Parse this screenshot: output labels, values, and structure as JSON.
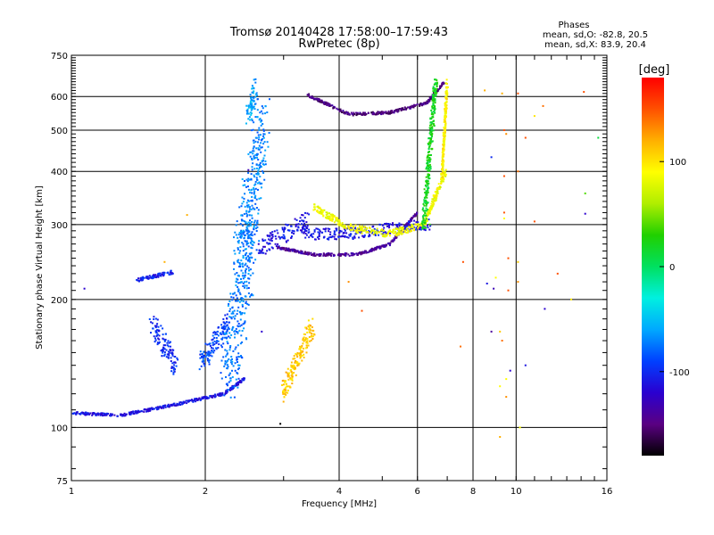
{
  "chart_data": {
    "type": "scatter",
    "title": "Tromsø 20140428 17:58:00–17:59:43",
    "subtitle": "RwPretec (8p)",
    "xlabel": "Frequency [MHz]",
    "ylabel": "Stationary phase Virtual Height [km]",
    "x_scale": "log",
    "y_scale": "log",
    "xlim": [
      1,
      16
    ],
    "ylim": [
      75,
      750
    ],
    "grid": true,
    "x_major_ticks": [
      1,
      2,
      4,
      6,
      8,
      10,
      16
    ],
    "x_major_tick_labels": [
      "1",
      "2",
      "4",
      "6",
      "8",
      "10",
      "16"
    ],
    "y_major_ticks": [
      75,
      100,
      200,
      300,
      400,
      500,
      600,
      750
    ],
    "y_major_tick_labels": [
      "75",
      "100",
      "200",
      "300",
      "400",
      "500",
      "600",
      "750"
    ],
    "phase_title": "Phases",
    "phase_stats_o": "mean, sd,O: -82.8, 20.5",
    "phase_stats_x": "mean, sd,X: 83.9, 20.4",
    "colorbar": {
      "label": "[deg]",
      "range": [
        -180,
        180
      ],
      "tick_values": [
        100,
        0,
        -100
      ],
      "tick_labels": [
        "100",
        "0",
        "-100"
      ],
      "colormap": [
        "#000000",
        "#5a0082",
        "#2a00d0",
        "#0040ff",
        "#00a8ff",
        "#00f0e0",
        "#00e060",
        "#20d000",
        "#b0ee00",
        "#ffff00",
        "#ffb000",
        "#ff5000",
        "#ff0000"
      ]
    },
    "series": [
      {
        "x": [
          [
            1.0,
            1.3
          ],
          [
            1.3,
            1.7
          ],
          [
            1.7,
            2.2
          ],
          [
            2.2,
            2.45
          ]
        ],
        "y": [
          [
            108,
            107
          ],
          [
            107,
            113
          ],
          [
            113,
            120
          ],
          [
            120,
            130
          ]
        ],
        "phase": -110,
        "spread": 0.015
      },
      {
        "x": [
          [
            1.4,
            1.7
          ]
        ],
        "y": [
          [
            222,
            232
          ]
        ],
        "phase": -105,
        "spread": 0.02
      },
      {
        "x": [
          [
            1.52,
            1.72
          ]
        ],
        "y": [
          [
            175,
            140
          ]
        ],
        "phase": -100,
        "spread": 0.12
      },
      {
        "x": [
          [
            1.95,
            2.25
          ]
        ],
        "y": [
          [
            140,
            175
          ]
        ],
        "phase": -90,
        "spread": 0.12
      },
      {
        "x": [
          [
            2.25,
            2.55
          ]
        ],
        "y": [
          [
            135,
            300
          ]
        ],
        "phase": -75,
        "spread": 0.35
      },
      {
        "x": [
          [
            2.4,
            2.7
          ]
        ],
        "y": [
          [
            240,
            540
          ]
        ],
        "phase": -70,
        "spread": 0.3
      },
      {
        "x": [
          [
            2.5,
            2.6
          ]
        ],
        "y": [
          [
            540,
            630
          ]
        ],
        "phase": -60,
        "spread": 0.1
      },
      {
        "x": [
          [
            2.65,
            3.4
          ]
        ],
        "y": [
          [
            265,
            305
          ]
        ],
        "phase": -110,
        "spread": 0.1
      },
      {
        "x": [
          [
            2.9,
            3.5
          ],
          [
            3.5,
            4.4
          ],
          [
            4.4,
            5.2
          ],
          [
            5.2,
            6.0
          ]
        ],
        "y": [
          [
            265,
            255
          ],
          [
            255,
            255
          ],
          [
            255,
            270
          ],
          [
            270,
            320
          ]
        ],
        "phase": -140,
        "spread": 0.015
      },
      {
        "x": [
          [
            3.3,
            4.2
          ],
          [
            4.2,
            5.0
          ],
          [
            5.0,
            6.4
          ]
        ],
        "y": [
          [
            285,
            285
          ],
          [
            285,
            292
          ],
          [
            292,
            300
          ]
        ],
        "phase": -110,
        "spread": 0.06
      },
      {
        "x": [
          [
            3.4,
            4.2
          ],
          [
            4.2,
            5.2
          ],
          [
            5.2,
            6.3
          ],
          [
            6.3,
            6.9
          ]
        ],
        "y": [
          [
            605,
            545
          ],
          [
            545,
            550
          ],
          [
            550,
            580
          ],
          [
            580,
            650
          ]
        ],
        "phase": -150,
        "spread": 0.015
      },
      {
        "x": [
          [
            3.5,
            4.2
          ],
          [
            4.2,
            5.2
          ],
          [
            5.2,
            6.2
          ],
          [
            6.2,
            6.95
          ]
        ],
        "y": [
          [
            330,
            295
          ],
          [
            295,
            285
          ],
          [
            285,
            300
          ],
          [
            300,
            400
          ]
        ],
        "phase": 85,
        "spread": 0.04
      },
      {
        "x": [
          [
            6.8,
            7.0
          ]
        ],
        "y": [
          [
            380,
            650
          ]
        ],
        "phase": 95,
        "spread": 0.04
      },
      {
        "x": [
          [
            6.2,
            6.6
          ]
        ],
        "y": [
          [
            300,
            650
          ]
        ],
        "phase": 20,
        "spread": 0.08
      },
      {
        "x": [
          [
            3.0,
            3.5
          ]
        ],
        "y": [
          [
            122,
            175
          ]
        ],
        "phase": 110,
        "spread": 0.1
      }
    ],
    "isolated_points": [
      [
        1.07,
        212,
        -120
      ],
      [
        1.62,
        245,
        120
      ],
      [
        1.82,
        316,
        120
      ],
      [
        2.5,
        403,
        -130
      ],
      [
        2.68,
        168,
        -120
      ],
      [
        2.95,
        102,
        -180
      ],
      [
        3.0,
        115,
        120
      ],
      [
        4.5,
        188,
        150
      ],
      [
        4.2,
        220,
        130
      ],
      [
        8.5,
        620,
        120
      ],
      [
        8.6,
        218,
        -110
      ],
      [
        8.8,
        168,
        -140
      ],
      [
        8.8,
        432,
        -100
      ],
      [
        8.9,
        212,
        -130
      ],
      [
        9.0,
        225,
        90
      ],
      [
        9.2,
        95,
        120
      ],
      [
        9.2,
        168,
        110
      ],
      [
        9.2,
        125,
        90
      ],
      [
        9.3,
        610,
        120
      ],
      [
        9.3,
        160,
        140
      ],
      [
        9.4,
        500,
        150
      ],
      [
        9.4,
        390,
        150
      ],
      [
        9.4,
        320,
        150
      ],
      [
        9.4,
        310,
        90
      ],
      [
        9.5,
        490,
        130
      ],
      [
        9.5,
        130,
        90
      ],
      [
        9.5,
        118,
        130
      ],
      [
        9.6,
        210,
        150
      ],
      [
        9.6,
        250,
        150
      ],
      [
        9.7,
        136,
        -120
      ],
      [
        10.1,
        610,
        150
      ],
      [
        10.1,
        400,
        140
      ],
      [
        10.1,
        245,
        110
      ],
      [
        10.1,
        220,
        130
      ],
      [
        10.2,
        100,
        90
      ],
      [
        10.5,
        480,
        150
      ],
      [
        10.5,
        140,
        -110
      ],
      [
        11.0,
        540,
        100
      ],
      [
        11.5,
        570,
        140
      ],
      [
        11.6,
        190,
        -120
      ],
      [
        11.0,
        305,
        150
      ],
      [
        12.4,
        230,
        150
      ],
      [
        13.3,
        200,
        100
      ],
      [
        14.2,
        615,
        150
      ],
      [
        14.3,
        355,
        40
      ],
      [
        14.3,
        318,
        -120
      ],
      [
        15.3,
        480,
        10
      ],
      [
        7.6,
        245,
        150
      ],
      [
        7.5,
        155,
        140
      ],
      [
        6.4,
        300,
        40
      ]
    ]
  }
}
